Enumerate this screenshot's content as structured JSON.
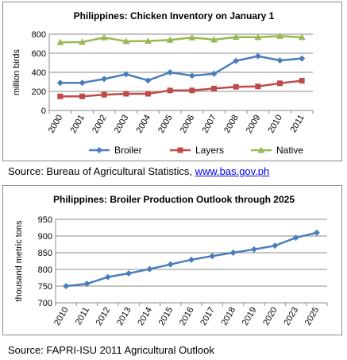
{
  "chart_data": [
    {
      "type": "line",
      "title": "Philippines: Chicken Inventory on January 1",
      "ylabel": "million birds",
      "xlabel": "",
      "categories": [
        "2000",
        "2001",
        "2002",
        "2003",
        "2004",
        "2005",
        "2006",
        "2007",
        "2008",
        "2009",
        "2010",
        "2011"
      ],
      "ylim": [
        0,
        800
      ],
      "yticks": [
        0,
        200,
        400,
        600,
        800
      ],
      "grid": true,
      "legend": "bottom",
      "series": [
        {
          "name": "Broiler",
          "color": "#4a7ebb",
          "marker": "diamond",
          "values": [
            290,
            290,
            330,
            380,
            315,
            400,
            365,
            385,
            520,
            570,
            525,
            545
          ]
        },
        {
          "name": "Layers",
          "color": "#be4b48",
          "marker": "square",
          "values": [
            148,
            148,
            165,
            175,
            175,
            210,
            210,
            230,
            248,
            252,
            285,
            312
          ]
        },
        {
          "name": "Native",
          "color": "#98b954",
          "marker": "triangle",
          "values": [
            715,
            718,
            765,
            725,
            728,
            740,
            765,
            742,
            770,
            768,
            780,
            768
          ]
        }
      ]
    },
    {
      "type": "line",
      "title": "Philippines: Broiler Production Outlook through 2025",
      "ylabel": "thousand metric tons",
      "xlabel": "",
      "categories": [
        "2010",
        "2011",
        "2012",
        "2013",
        "2014",
        "2015",
        "2016",
        "2017",
        "2018",
        "2019",
        "2020",
        "2023",
        "2025"
      ],
      "ylim": [
        700,
        950
      ],
      "yticks": [
        700,
        750,
        800,
        850,
        900,
        950
      ],
      "grid": true,
      "legend": "none",
      "series": [
        {
          "color": "#4a7ebb",
          "marker": "diamond",
          "values": [
            750,
            757,
            777,
            788,
            801,
            815,
            829,
            840,
            850,
            860,
            871,
            895,
            910
          ]
        }
      ]
    }
  ],
  "sources": {
    "source1_prefix": "Source:  Bureau of Agricultural Statistics, ",
    "source1_link": "www.bas.gov.ph",
    "source2": "Source:  FAPRI-ISU 2011 Agricultural Outlook"
  }
}
